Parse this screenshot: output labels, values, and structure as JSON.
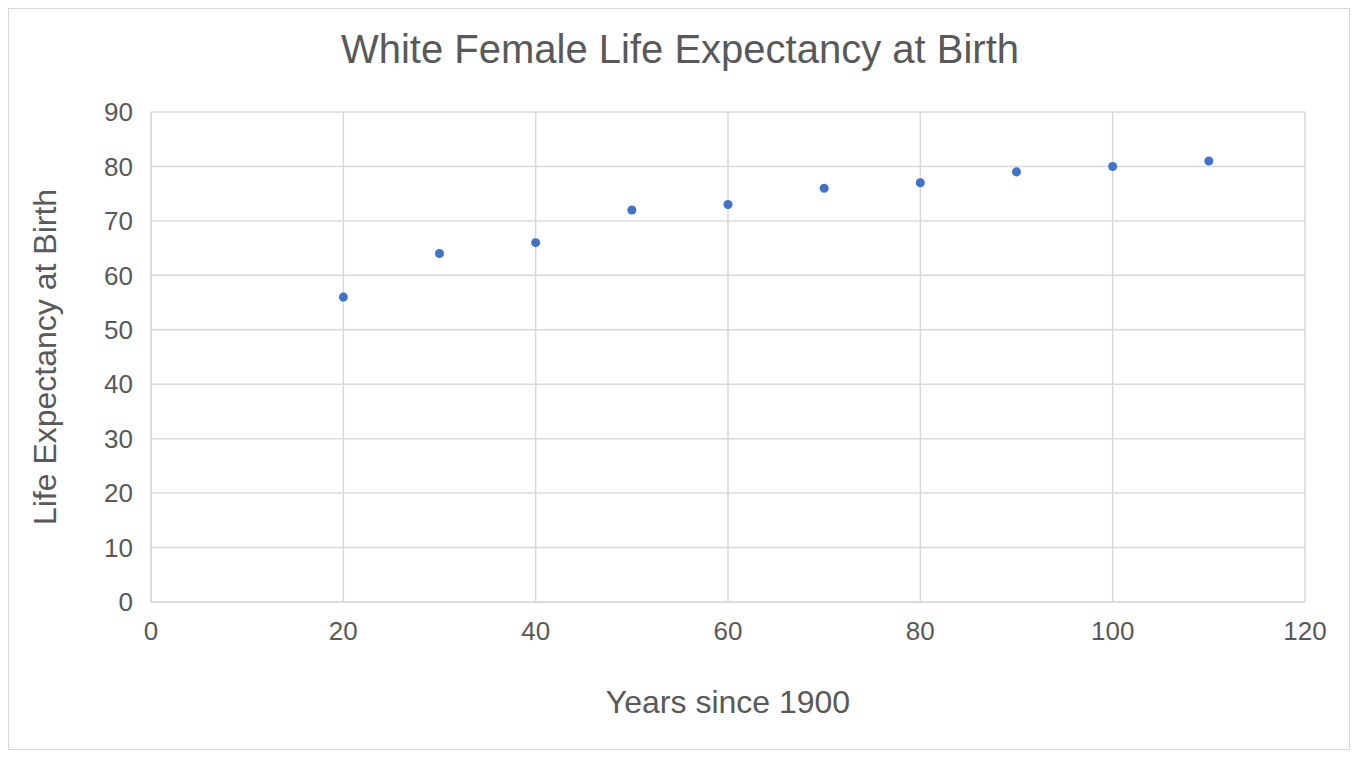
{
  "chart_data": {
    "type": "scatter",
    "title": "White Female Life Expectancy at Birth",
    "x_label": "Years since 1900",
    "y_label": "Life Expectancy at Birth",
    "x": [
      20,
      30,
      40,
      50,
      60,
      70,
      80,
      90,
      100,
      110
    ],
    "values": [
      56,
      64,
      66,
      72,
      73,
      76,
      77,
      79,
      80,
      81
    ],
    "color": "#4472c4",
    "marker": "circle",
    "xlim": [
      0,
      120
    ],
    "xticks": [
      0,
      20,
      40,
      60,
      80,
      100,
      120
    ],
    "ylim": [
      0,
      90
    ],
    "yticks": [
      0,
      10,
      20,
      30,
      40,
      50,
      60,
      70,
      80,
      90
    ],
    "grid": true
  }
}
